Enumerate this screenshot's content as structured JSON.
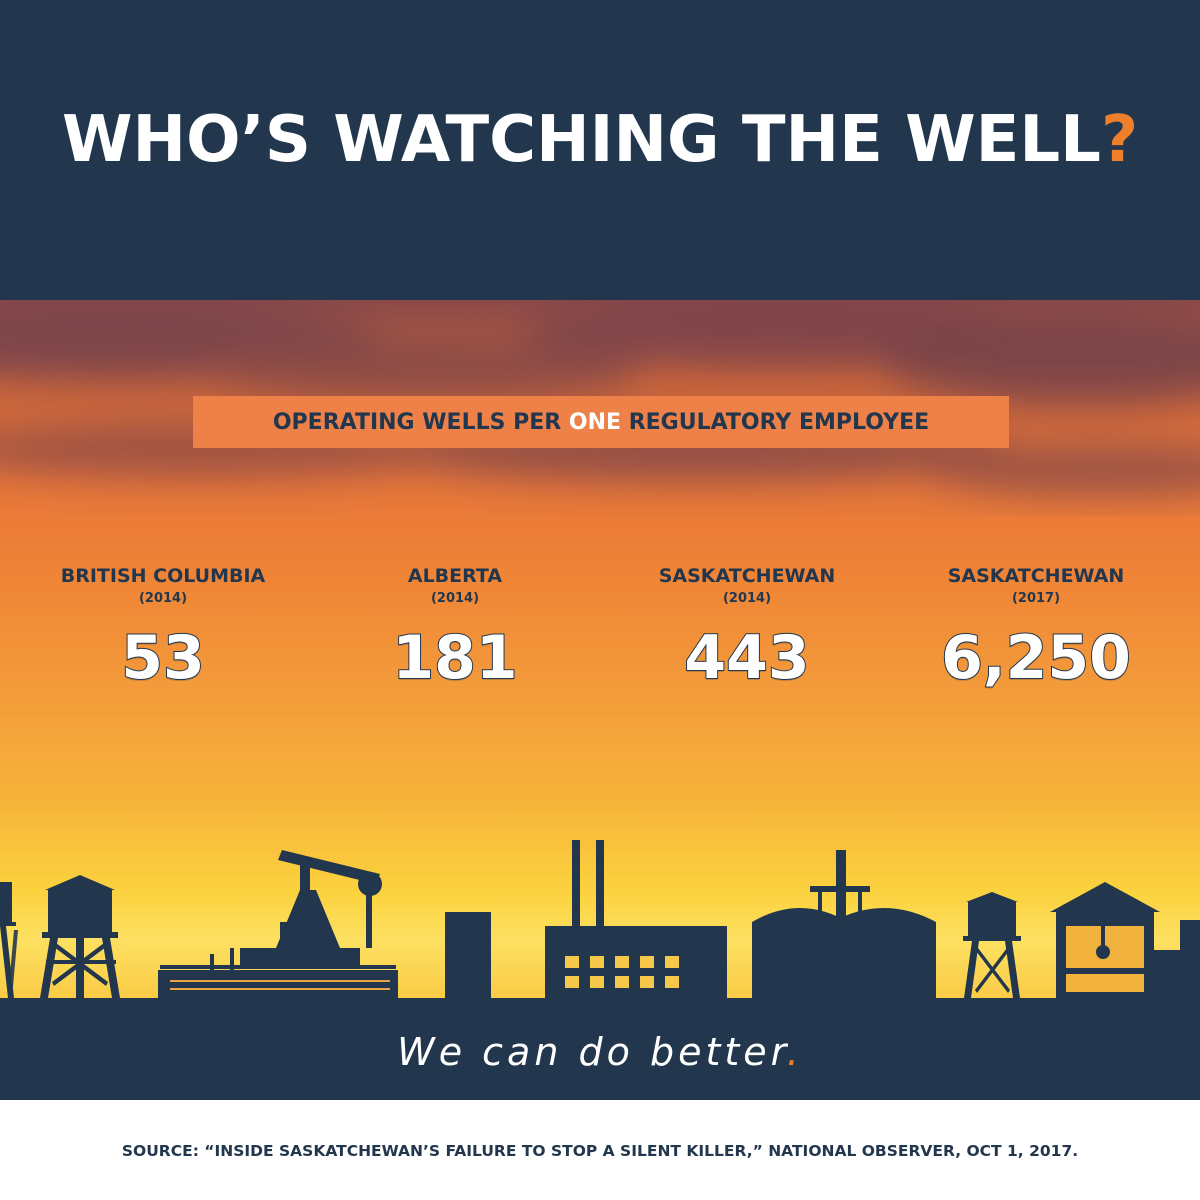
{
  "title": {
    "text": "WHO’S WATCHING THE WELL",
    "punctuation": "?"
  },
  "subtitle": {
    "before": "OPERATING WELLS PER ",
    "highlight": "ONE",
    "after": " REGULATORY EMPLOYEE"
  },
  "stats": [
    {
      "region": "BRITISH COLUMBIA",
      "year": "(2014)",
      "value": "53"
    },
    {
      "region": "ALBERTA",
      "year": "(2014)",
      "value": "181"
    },
    {
      "region": "SASKATCHEWAN",
      "year": "(2014)",
      "value": "443"
    },
    {
      "region": "SASKATCHEWAN",
      "year": "(2017)",
      "value": "6,250"
    }
  ],
  "tagline": {
    "text": "We can do better",
    "dot": "."
  },
  "source": "SOURCE: “INSIDE SASKATCHEWAN’S FAILURE TO STOP A SILENT KILLER,” NATIONAL OBSERVER, OCT 1, 2017.",
  "colors": {
    "navy": "#22374d",
    "accent_orange": "#f07f2b",
    "label_box": "#ed8147",
    "sky_top": "#8c4a49",
    "sky_glow": "#fde061"
  },
  "icons": [
    "water-tower-icon",
    "oil-pumpjack-icon",
    "factory-smokestacks-icon",
    "refinery-icon",
    "barn-icon"
  ]
}
